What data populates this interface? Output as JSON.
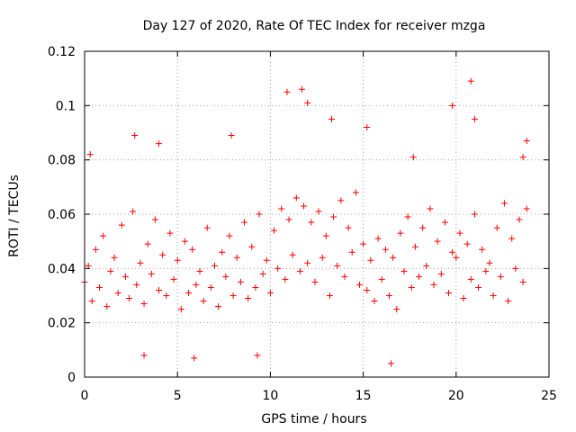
{
  "chart_data": {
    "type": "scatter",
    "title": "Day 127 of 2020, Rate Of TEC Index for receiver mzga",
    "xlabel": "GPS time / hours",
    "ylabel": "ROTI / TECUs",
    "xlim": [
      0,
      25
    ],
    "ylim": [
      0,
      0.12
    ],
    "x_ticks": [
      0,
      5,
      10,
      15,
      20,
      25
    ],
    "y_ticks": [
      0,
      0.02,
      0.04,
      0.06,
      0.08,
      0.1,
      0.12
    ],
    "x_tick_labels": [
      "0",
      "5",
      "10",
      "15",
      "20",
      "25"
    ],
    "y_tick_labels": [
      "0",
      "0.02",
      "0.04",
      "0.06",
      "0.08",
      "0.1",
      "0.12"
    ],
    "grid": true,
    "marker": "+",
    "color": "#ff0000",
    "series": [
      {
        "x": [
          0.0,
          0.2,
          0.4,
          0.6,
          0.8,
          1.0,
          1.2,
          1.4,
          1.6,
          1.8,
          2.0,
          2.2,
          2.4,
          2.6,
          2.8,
          3.0,
          3.2,
          3.4,
          3.6,
          3.8,
          4.0,
          4.2,
          4.4,
          4.6,
          4.8,
          5.0,
          5.2,
          5.4,
          5.6,
          5.8,
          6.0,
          6.2,
          6.4,
          6.6,
          6.8,
          7.0,
          7.2,
          7.4,
          7.6,
          7.8,
          8.0,
          8.2,
          8.4,
          8.6,
          8.8,
          9.0,
          9.2,
          9.4,
          9.6,
          9.8,
          10.0,
          10.2,
          10.4,
          10.6,
          10.8,
          11.0,
          11.2,
          11.4,
          11.6,
          11.8,
          12.0,
          12.2,
          12.4,
          12.6,
          12.8,
          13.0,
          13.2,
          13.4,
          13.6,
          13.8,
          14.0,
          14.2,
          14.4,
          14.6,
          14.8,
          15.0,
          15.2,
          15.4,
          15.6,
          15.8,
          16.0,
          16.2,
          16.4,
          16.6,
          16.8,
          17.0,
          17.2,
          17.4,
          17.6,
          17.8,
          18.0,
          18.2,
          18.4,
          18.6,
          18.8,
          19.0,
          19.2,
          19.4,
          19.6,
          19.8,
          20.0,
          20.2,
          20.4,
          20.6,
          20.8,
          21.0,
          21.2,
          21.4,
          21.6,
          21.8,
          22.0,
          22.2,
          22.4,
          22.6,
          22.8,
          23.0,
          23.2,
          23.4,
          23.6,
          23.8,
          0.3,
          2.7,
          4.0,
          7.9,
          10.9,
          11.7,
          12.0,
          13.3,
          15.2,
          17.7,
          19.8,
          20.8,
          21.0,
          23.6,
          23.8,
          16.5,
          3.2,
          5.9,
          9.3
        ],
        "y": [
          0.035,
          0.041,
          0.028,
          0.047,
          0.033,
          0.052,
          0.026,
          0.039,
          0.044,
          0.031,
          0.056,
          0.037,
          0.029,
          0.061,
          0.034,
          0.042,
          0.027,
          0.049,
          0.038,
          0.058,
          0.032,
          0.045,
          0.03,
          0.053,
          0.036,
          0.043,
          0.025,
          0.05,
          0.031,
          0.047,
          0.034,
          0.039,
          0.028,
          0.055,
          0.033,
          0.041,
          0.026,
          0.046,
          0.037,
          0.052,
          0.03,
          0.044,
          0.035,
          0.057,
          0.029,
          0.048,
          0.033,
          0.06,
          0.038,
          0.043,
          0.031,
          0.054,
          0.04,
          0.062,
          0.036,
          0.058,
          0.045,
          0.066,
          0.039,
          0.063,
          0.042,
          0.057,
          0.035,
          0.061,
          0.044,
          0.052,
          0.03,
          0.059,
          0.041,
          0.065,
          0.037,
          0.055,
          0.046,
          0.068,
          0.034,
          0.049,
          0.032,
          0.043,
          0.028,
          0.051,
          0.036,
          0.047,
          0.03,
          0.044,
          0.025,
          0.053,
          0.039,
          0.059,
          0.033,
          0.048,
          0.037,
          0.055,
          0.041,
          0.062,
          0.034,
          0.05,
          0.038,
          0.057,
          0.031,
          0.046,
          0.044,
          0.053,
          0.029,
          0.049,
          0.036,
          0.06,
          0.033,
          0.047,
          0.039,
          0.042,
          0.03,
          0.055,
          0.037,
          0.064,
          0.028,
          0.051,
          0.04,
          0.058,
          0.035,
          0.062,
          0.082,
          0.089,
          0.086,
          0.089,
          0.105,
          0.106,
          0.101,
          0.095,
          0.092,
          0.081,
          0.1,
          0.109,
          0.095,
          0.081,
          0.087,
          0.005,
          0.008,
          0.007,
          0.008
        ]
      }
    ]
  }
}
